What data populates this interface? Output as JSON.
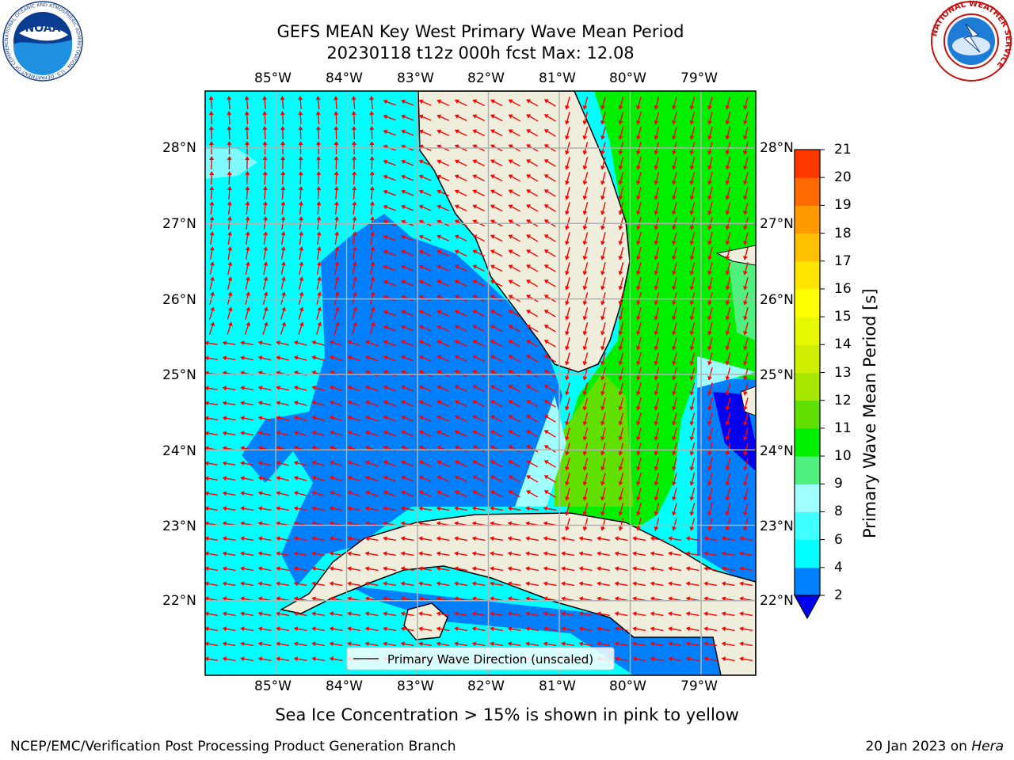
{
  "header": {
    "title_line1": "GEFS MEAN Key West Primary Wave Mean Period",
    "title_line2": "20230118 t12z 000h fcst   Max: 12.08"
  },
  "logos": {
    "left_label": "NOAA",
    "left_ring_text": "NATIONAL OCEANIC AND ATMOSPHERIC ADMINISTRATION · U.S. DEPARTMENT OF COMMERCE",
    "right_ring_text": "NATIONAL WEATHER SERVICE"
  },
  "map": {
    "lon_labels": [
      "85°W",
      "84°W",
      "83°W",
      "82°W",
      "81°W",
      "80°W",
      "79°W"
    ],
    "lat_labels": [
      "28°N",
      "27°N",
      "26°N",
      "25°N",
      "24°N",
      "23°N",
      "22°N"
    ],
    "legend_text": "Primary Wave Direction (unscaled)",
    "colors": {
      "land": "#efeedc",
      "water_cyan": "#00ffff",
      "water_blue": "#0080ff",
      "water_green": "#00ee00",
      "arrow": "#ff0000"
    }
  },
  "colorbar": {
    "label": "Primary Wave Mean Period [s]",
    "ticks": [
      "2",
      "4",
      "6",
      "8",
      "9",
      "10",
      "11",
      "12",
      "13",
      "14",
      "15",
      "16",
      "17",
      "18",
      "19",
      "20",
      "21"
    ],
    "colors": [
      "#0080ff",
      "#00ffff",
      "#40ffff",
      "#a0ffff",
      "#50f080",
      "#00ee00",
      "#60e000",
      "#a8e800",
      "#d0ee00",
      "#e8f800",
      "#ffff00",
      "#ffe400",
      "#ffc000",
      "#ff9a00",
      "#ff6a00",
      "#ff3800",
      "#ff0000"
    ],
    "below_color": "#0000ee"
  },
  "caption": "Sea Ice Concentration > 15% is shown in pink to yellow",
  "footer": {
    "left": "NCEP/EMC/Verification Post Processing Product Generation Branch",
    "right_prefix": "20 Jan 2023 on ",
    "right_machine": "Hera"
  }
}
